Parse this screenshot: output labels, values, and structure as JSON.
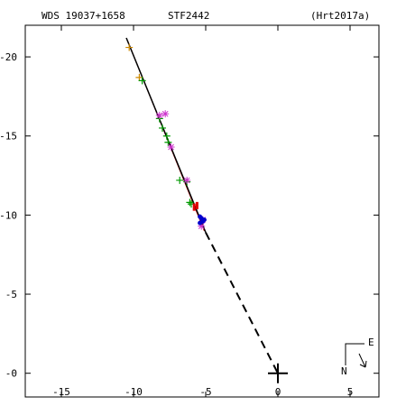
{
  "header": {
    "wds_id": "WDS 19037+1658",
    "discoverer": "STF2442",
    "orbit_ref": "(Hrt2017a)"
  },
  "chart_data": {
    "type": "scatter",
    "title": "",
    "xlabel": "",
    "ylabel": "",
    "xlim": [
      -17.5,
      7
    ],
    "ylim": [
      -1.5,
      22
    ],
    "x_ticks": [
      -15,
      -10,
      -5,
      0,
      5
    ],
    "x_tick_labels": [
      "-15",
      "-10",
      "-5",
      "0",
      "5"
    ],
    "y_ticks": [
      0,
      5,
      10,
      15,
      20
    ],
    "y_tick_labels": [
      "-0",
      "-5",
      "-10",
      "-15",
      "-20"
    ],
    "grid": false,
    "primary_star": {
      "x": 0,
      "y": 0,
      "marker": "+"
    },
    "orbit_fit": {
      "start": {
        "x": -10.5,
        "y": 21.2
      },
      "end": {
        "x": -5.0,
        "y": 8.9
      },
      "color": "#000000"
    },
    "orbit_fit_alt": {
      "start": {
        "x": -10.4,
        "y": 21.0
      },
      "end": {
        "x": -5.1,
        "y": 9.0
      },
      "color": "#cc0000"
    },
    "line_to_primary": {
      "from": {
        "x": -5.0,
        "y": 8.9
      },
      "to": {
        "x": 0,
        "y": 0
      },
      "style": "dashed"
    },
    "series": [
      {
        "marker": "plus",
        "color": "#cc8800",
        "points": [
          {
            "x": -10.3,
            "y": 20.6
          },
          {
            "x": -9.6,
            "y": 18.7
          }
        ]
      },
      {
        "marker": "plus",
        "color": "#009900",
        "points": [
          {
            "x": -9.4,
            "y": 18.5
          },
          {
            "x": -8.2,
            "y": 16.1
          },
          {
            "x": -8.0,
            "y": 15.5
          },
          {
            "x": -7.7,
            "y": 15.0
          },
          {
            "x": -7.6,
            "y": 14.6
          },
          {
            "x": -6.8,
            "y": 12.2
          },
          {
            "x": -6.3,
            "y": 12.1
          },
          {
            "x": -6.1,
            "y": 10.8
          },
          {
            "x": -6.0,
            "y": 10.7
          }
        ]
      },
      {
        "marker": "star",
        "color": "#cc33cc",
        "points": [
          {
            "x": -8.2,
            "y": 16.3
          },
          {
            "x": -7.8,
            "y": 16.4
          },
          {
            "x": -7.4,
            "y": 14.3
          },
          {
            "x": -6.3,
            "y": 12.2
          },
          {
            "x": -5.2,
            "y": 9.7
          },
          {
            "x": -5.3,
            "y": 9.3
          }
        ]
      },
      {
        "marker": "bar",
        "color": "#dd0000",
        "points": [
          {
            "x": -5.8,
            "y": 10.5
          },
          {
            "x": -5.6,
            "y": 10.6
          }
        ]
      },
      {
        "marker": "dot",
        "color": "#0000cc",
        "points": [
          {
            "x": -5.4,
            "y": 9.9
          },
          {
            "x": -5.3,
            "y": 9.8
          },
          {
            "x": -5.2,
            "y": 9.6
          },
          {
            "x": -5.4,
            "y": 9.5
          },
          {
            "x": -5.1,
            "y": 9.7
          }
        ]
      }
    ]
  },
  "orientation": {
    "north_label": "N",
    "east_label": "E"
  }
}
